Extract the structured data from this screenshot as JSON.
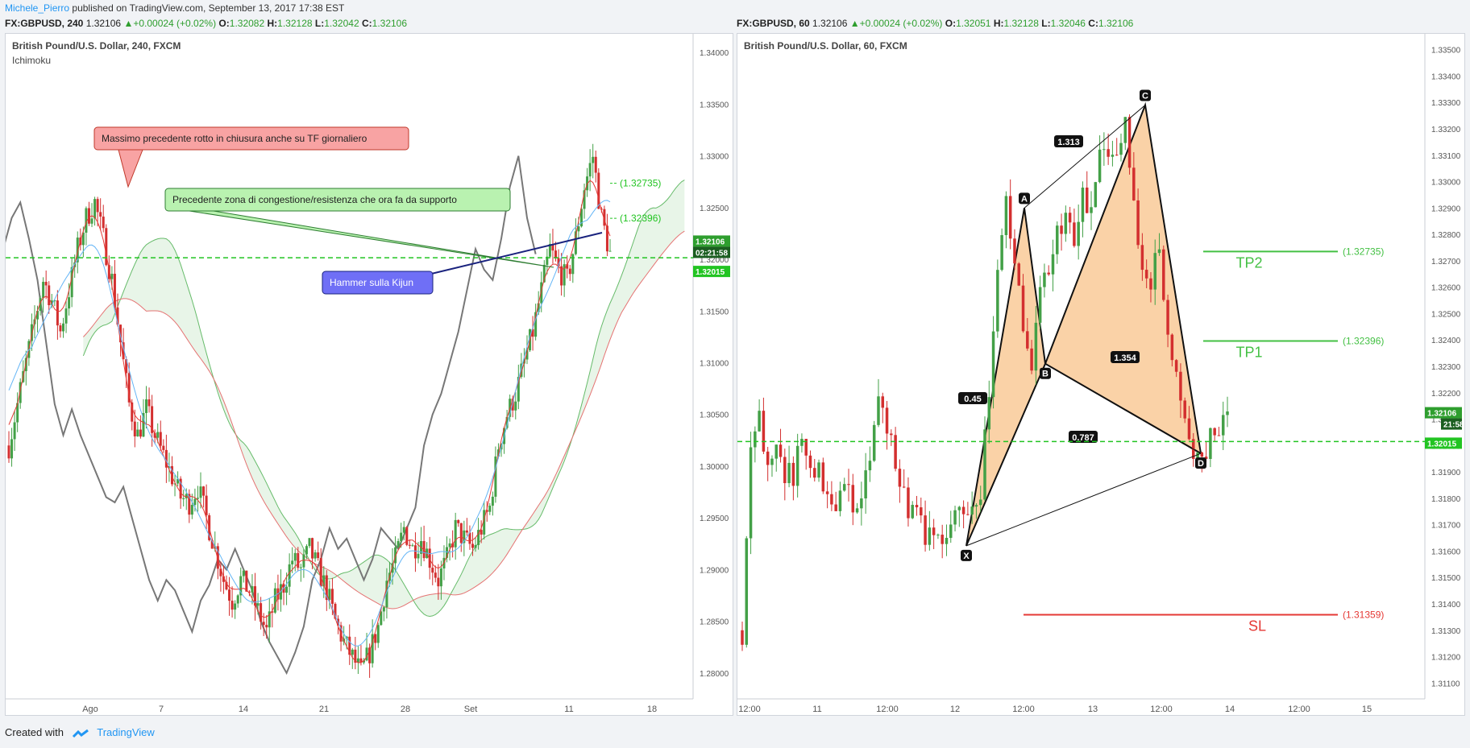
{
  "header": {
    "author": "Michele_Pierro",
    "published": "published on TradingView.com, September 13, 2017 17:38 EST"
  },
  "quote_left": {
    "symbol": "FX:GBPUSD, 240",
    "last": "1.32106",
    "change": "+0.00024 (+0.02%)",
    "O": "1.32082",
    "H": "1.32128",
    "L": "1.32042",
    "C": "1.32106"
  },
  "quote_right": {
    "symbol": "FX:GBPUSD, 60",
    "last": "1.32106",
    "change": "+0.00024 (+0.02%)",
    "O": "1.32051",
    "H": "1.32128",
    "L": "1.32046",
    "C": "1.32106"
  },
  "footer": {
    "created": "Created with",
    "brand": "TradingView"
  },
  "colors": {
    "up": "#43a047",
    "down": "#d32f2f",
    "price_line": "#22c422"
  },
  "chart_data": [
    {
      "type": "candlestick",
      "title": "British Pound/U.S. Dollar, 240, FXCM",
      "indicator": "Ichimoku",
      "x_tick_labels": [
        "Ago",
        "7",
        "14",
        "21",
        "28",
        "Set",
        "11",
        "18"
      ],
      "y_tick_labels": [
        "1.34000",
        "1.33500",
        "1.33000",
        "1.32500",
        "1.32000",
        "1.31500",
        "1.31000",
        "1.30500",
        "1.30000",
        "1.29500",
        "1.29000",
        "1.28500",
        "1.28000"
      ],
      "ylim": [
        1.2775,
        1.3418
      ],
      "price_badges": {
        "last": "1.32106",
        "countdown": "02:21:58",
        "line": "1.32015"
      },
      "levels": [
        {
          "label": "(1.32735)",
          "value": 1.32735
        },
        {
          "label": "(1.32396)",
          "value": 1.32396
        }
      ],
      "annotations": [
        {
          "text": "Massimo precedente rotto in chiusura anche su TF giornaliero",
          "style": "red"
        },
        {
          "text": "Precedente zona di congestione/resistenza che ora fa da supporto",
          "style": "green"
        },
        {
          "text": "Hammer sulla Kijun",
          "style": "blue"
        }
      ],
      "close_path": [
        1.302,
        1.306,
        1.31,
        1.314,
        1.318,
        1.316,
        1.313,
        1.317,
        1.321,
        1.324,
        1.3255,
        1.322,
        1.318,
        1.312,
        1.306,
        1.303,
        1.3055,
        1.303,
        1.301,
        1.299,
        1.297,
        1.2965,
        1.298,
        1.295,
        1.292,
        1.289,
        1.287,
        1.289,
        1.288,
        1.286,
        1.284,
        1.287,
        1.2885,
        1.291,
        1.29,
        1.292,
        1.29,
        1.288,
        1.285,
        1.283,
        1.2815,
        1.28,
        1.282,
        1.2845,
        1.289,
        1.291,
        1.294,
        1.292,
        1.293,
        1.291,
        1.289,
        1.291,
        1.294,
        1.293,
        1.292,
        1.294,
        1.296,
        1.302,
        1.305,
        1.307,
        1.31,
        1.313,
        1.317,
        1.321,
        1.319,
        1.318,
        1.322,
        1.327,
        1.33,
        1.324,
        1.3205
      ]
    },
    {
      "type": "candlestick",
      "title": "British Pound/U.S. Dollar, 60, FXCM",
      "x_tick_labels": [
        "12:00",
        "11",
        "12:00",
        "12",
        "12:00",
        "13",
        "12:00",
        "14",
        "12:00",
        "15"
      ],
      "y_tick_labels": [
        "1.33500",
        "1.33400",
        "1.33300",
        "1.33200",
        "1.33100",
        "1.33000",
        "1.32900",
        "1.32800",
        "1.32700",
        "1.32600",
        "1.32500",
        "1.32400",
        "1.32300",
        "1.32200",
        "1.32100",
        "1.32000",
        "1.31900",
        "1.31800",
        "1.31700",
        "1.31600",
        "1.31500",
        "1.31400",
        "1.31300",
        "1.31200",
        "1.31100"
      ],
      "ylim": [
        1.3104,
        1.3356
      ],
      "price_badges": {
        "last": "1.32106",
        "countdown": "21:58",
        "line": "1.32015"
      },
      "harmonic_points": [
        {
          "label": "X",
          "value": 1.3162
        },
        {
          "label": "A",
          "value": 1.329
        },
        {
          "label": "B",
          "value": 1.3231
        },
        {
          "label": "C",
          "value": 1.3329
        },
        {
          "label": "D",
          "value": 1.3197
        }
      ],
      "ratios": [
        "1.313",
        "0.45",
        "1.354",
        "0.787"
      ],
      "levels": [
        {
          "name": "TP2",
          "label": "(1.32735)",
          "value": 1.32735
        },
        {
          "name": "TP1",
          "label": "(1.32396)",
          "value": 1.32396
        },
        {
          "name": "SL",
          "label": "(1.31359)",
          "value": 1.31359
        }
      ],
      "close_path": [
        1.313,
        1.3195,
        1.321,
        1.3195,
        1.3205,
        1.3188,
        1.319,
        1.32,
        1.3195,
        1.319,
        1.3185,
        1.318,
        1.3188,
        1.3175,
        1.318,
        1.3195,
        1.3215,
        1.3205,
        1.3195,
        1.318,
        1.3175,
        1.317,
        1.3165,
        1.317,
        1.3163,
        1.3172,
        1.3175,
        1.3178,
        1.3185,
        1.322,
        1.3265,
        1.329,
        1.327,
        1.3245,
        1.3232,
        1.3255,
        1.3268,
        1.328,
        1.3285,
        1.3275,
        1.3295,
        1.3285,
        1.331,
        1.3305,
        1.331,
        1.3329,
        1.329,
        1.3265,
        1.326,
        1.3275,
        1.3245,
        1.323,
        1.321,
        1.3198,
        1.3195,
        1.3202,
        1.3206,
        1.321
      ]
    }
  ]
}
